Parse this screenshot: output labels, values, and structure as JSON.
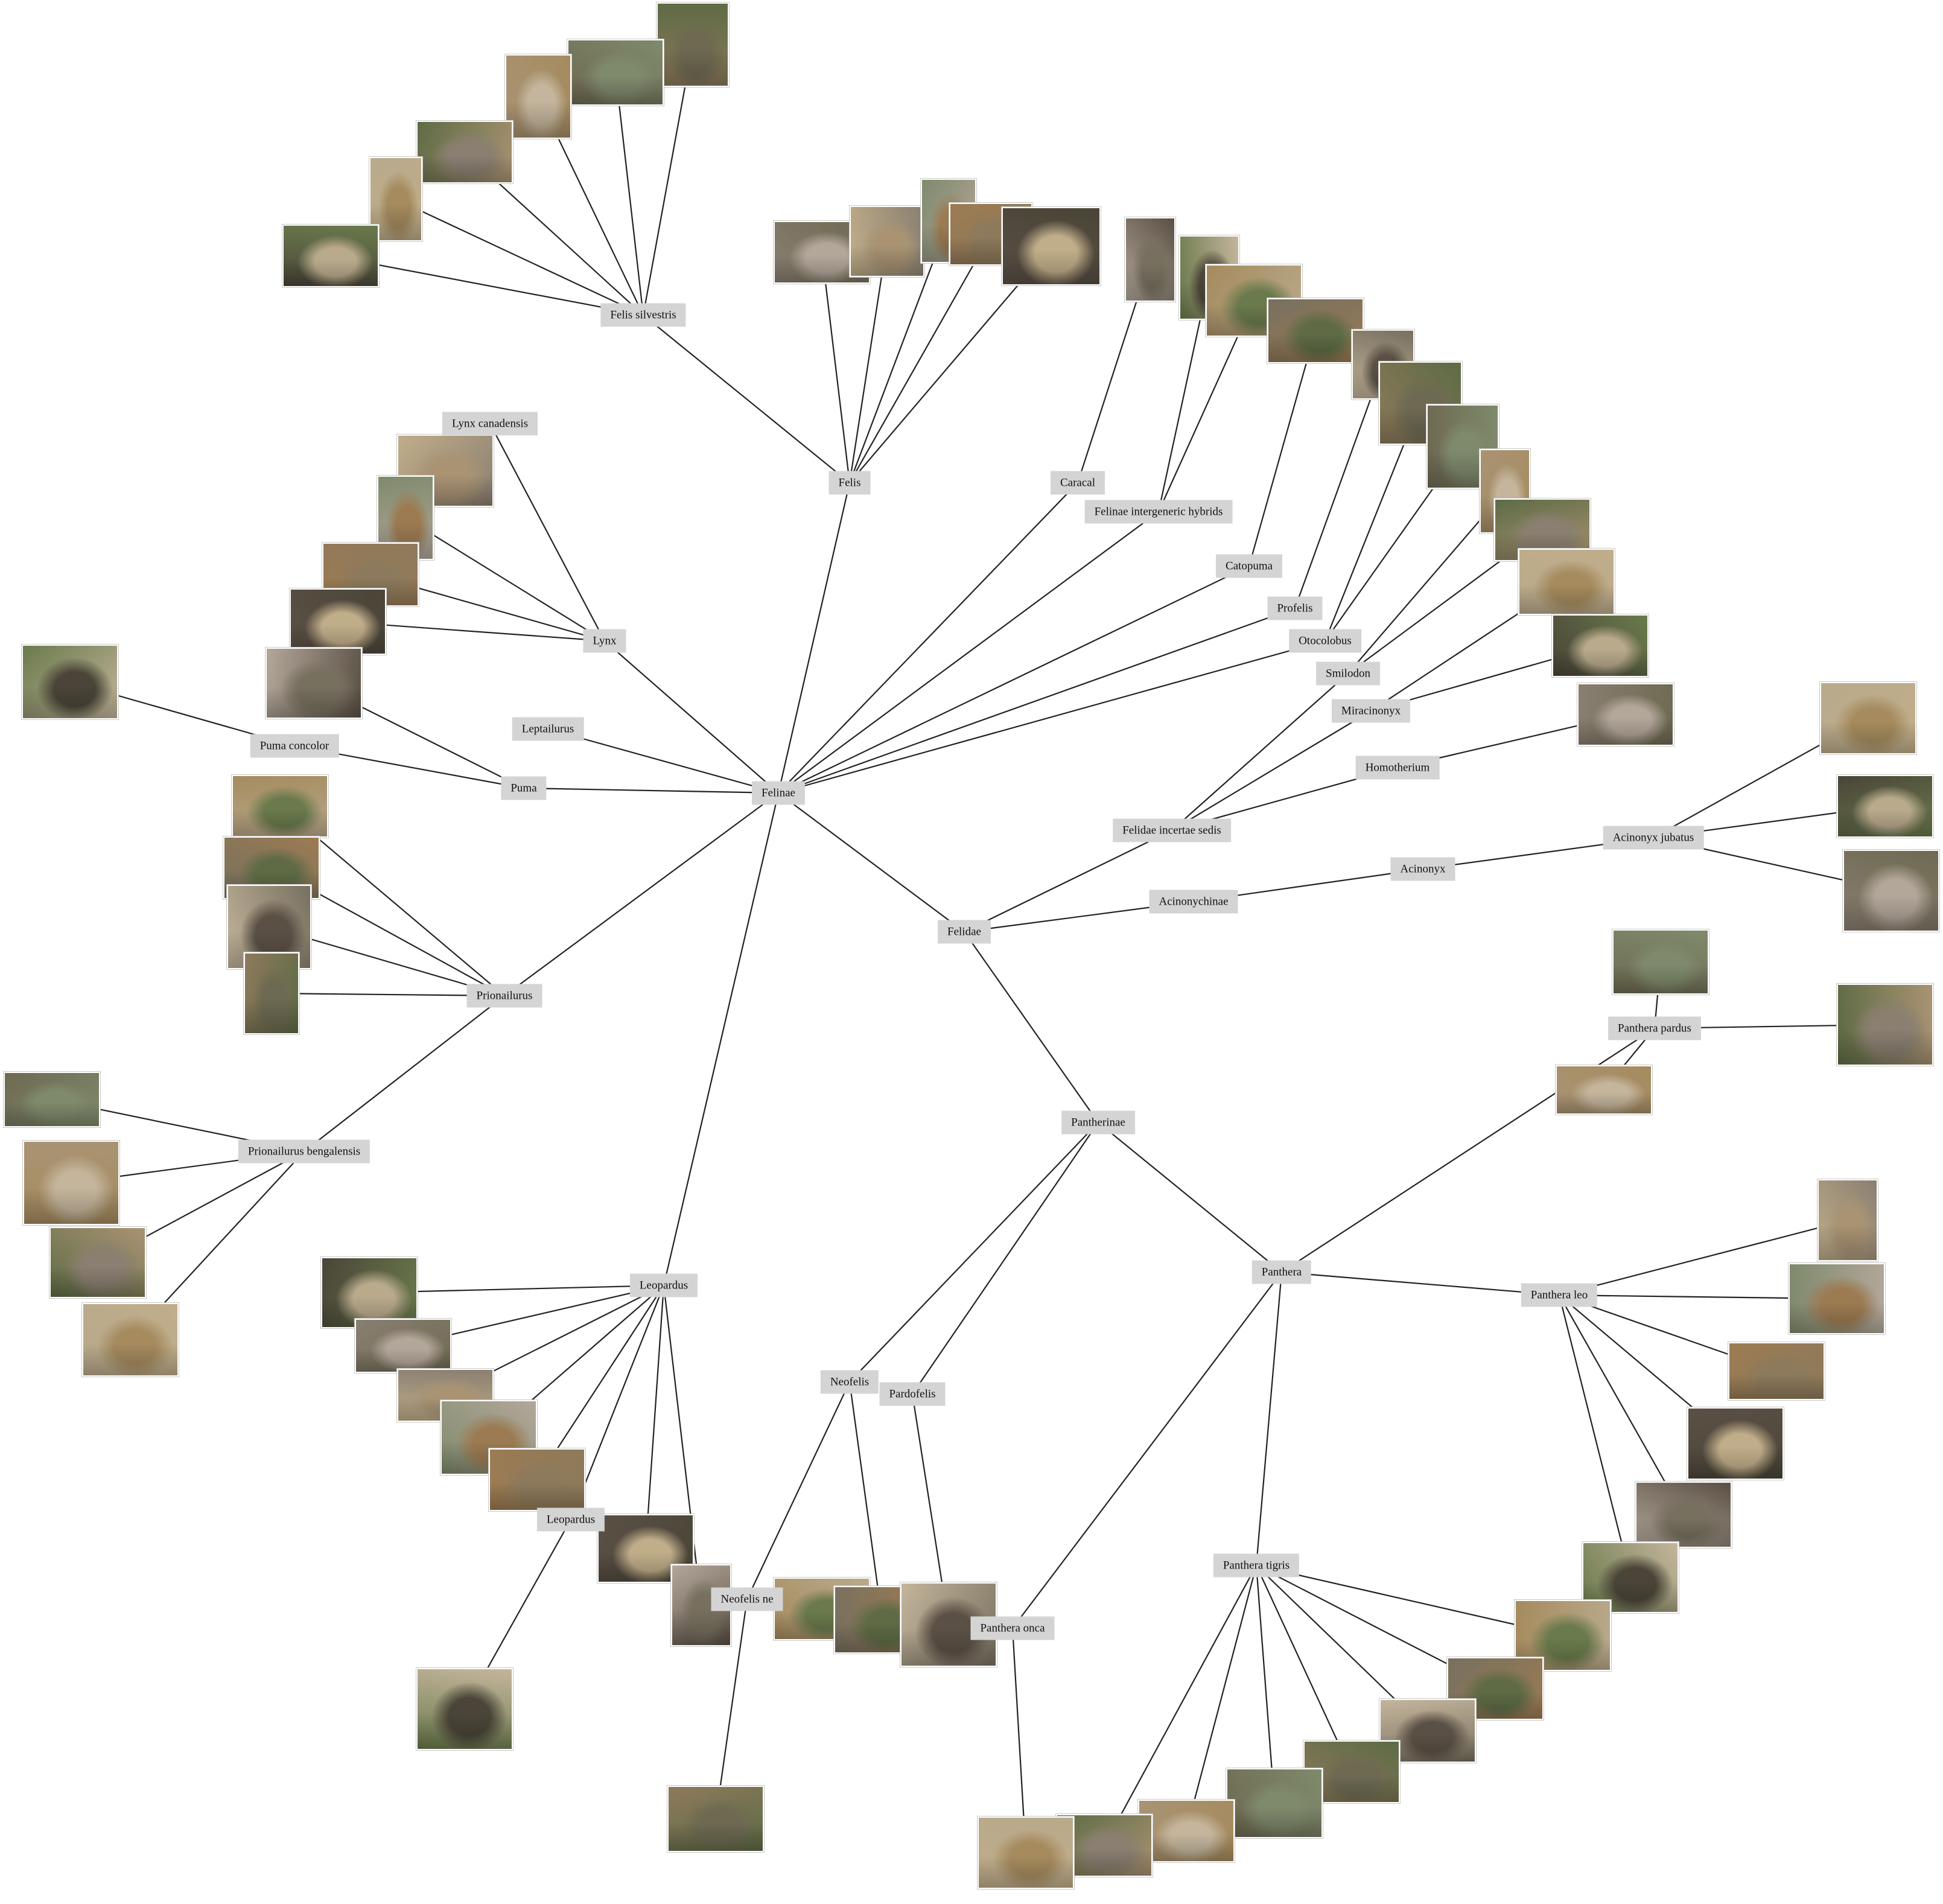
{
  "diagram": {
    "nodes": {
      "felidae": "Felidae",
      "felinae": "Felinae",
      "pantherinae": "Pantherinae",
      "acinonychinae": "Acinonychinae",
      "felidae_incertae": "Felidae incertae sedis",
      "acinonyx": "Acinonyx",
      "acinonyx_jubatus": "Acinonyx jubatus",
      "felis": "Felis",
      "felis_silvestris": "Felis silvestris",
      "caracal": "Caracal",
      "felinae_hybrids": "Felinae intergeneric hybrids",
      "catopuma": "Catopuma",
      "profelis": "Profelis",
      "otocolobus": "Otocolobus",
      "smilodon": "Smilodon",
      "miracinonyx": "Miracinonyx",
      "homotherium": "Homotherium",
      "lynx": "Lynx",
      "lynx_canadensis": "Lynx canadensis",
      "leptailurus": "Leptailurus",
      "puma": "Puma",
      "puma_concolor": "Puma concolor",
      "prionailurus": "Prionailurus",
      "prionailurus_bengalensis": "Prionailurus bengalensis",
      "leopardus": "Leopardus",
      "leopardus_sp": "Leopardus",
      "neofelis": "Neofelis",
      "neofelis_ne": "Neofelis ne",
      "pardofelis": "Pardofelis",
      "panthera": "Panthera",
      "panthera_pardus": "Panthera pardus",
      "panthera_leo": "Panthera leo",
      "panthera_tigris": "Panthera tigris",
      "panthera_onca": "Panthera onca"
    },
    "edges": [
      [
        "felidae",
        "felinae"
      ],
      [
        "felidae",
        "pantherinae"
      ],
      [
        "felidae",
        "acinonychinae"
      ],
      [
        "felidae",
        "felidae_incertae"
      ],
      [
        "acinonychinae",
        "acinonyx"
      ],
      [
        "acinonyx",
        "acinonyx_jubatus"
      ],
      [
        "felidae_incertae",
        "smilodon"
      ],
      [
        "felidae_incertae",
        "miracinonyx"
      ],
      [
        "felidae_incertae",
        "homotherium"
      ],
      [
        "felinae",
        "felis"
      ],
      [
        "felis",
        "felis_silvestris"
      ],
      [
        "felinae",
        "caracal"
      ],
      [
        "felinae",
        "felinae_hybrids"
      ],
      [
        "felinae",
        "catopuma"
      ],
      [
        "felinae",
        "profelis"
      ],
      [
        "felinae",
        "otocolobus"
      ],
      [
        "felinae",
        "lynx"
      ],
      [
        "lynx",
        "lynx_canadensis"
      ],
      [
        "felinae",
        "leptailurus"
      ],
      [
        "felinae",
        "puma"
      ],
      [
        "puma",
        "puma_concolor"
      ],
      [
        "felinae",
        "prionailurus"
      ],
      [
        "prionailurus",
        "prionailurus_bengalensis"
      ],
      [
        "felinae",
        "leopardus"
      ],
      [
        "leopardus",
        "leopardus_sp"
      ],
      [
        "pantherinae",
        "neofelis"
      ],
      [
        "pantherinae",
        "pardofelis"
      ],
      [
        "pantherinae",
        "panthera"
      ],
      [
        "neofelis",
        "neofelis_ne"
      ],
      [
        "panthera",
        "panthera_pardus"
      ],
      [
        "panthera",
        "panthera_leo"
      ],
      [
        "panthera",
        "panthera_tigris"
      ],
      [
        "panthera",
        "panthera_onca"
      ]
    ]
  },
  "photo_palette": [
    "#8d7a5c",
    "#6e6a52",
    "#a99373",
    "#5e6b45",
    "#b9aa8c",
    "#4a4538",
    "#8a7f71",
    "#c0ad89",
    "#7f8a6c",
    "#9c7b52",
    "#5b5045",
    "#b3a79a",
    "#6a7a4c",
    "#a58b5e",
    "#77705f",
    "#c4b59c"
  ]
}
